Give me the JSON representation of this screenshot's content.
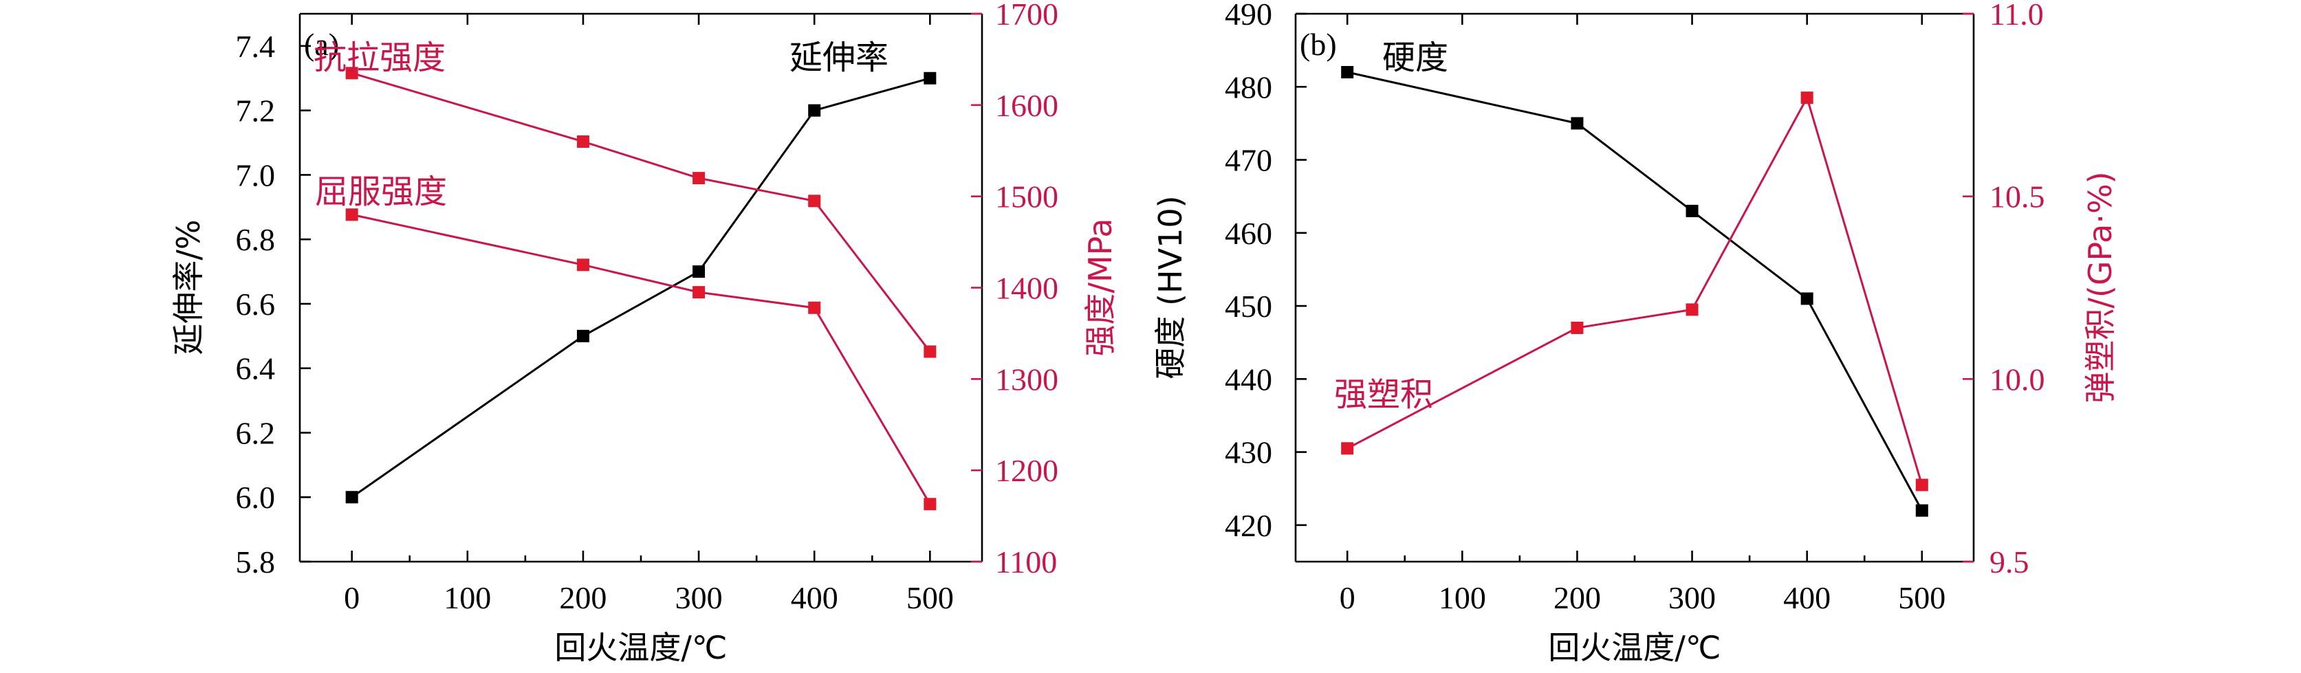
{
  "chart_data": [
    {
      "type": "line",
      "panel_label": "(a)",
      "xlabel": "回火温度/℃",
      "x_ticks": [
        0,
        100,
        200,
        300,
        400,
        500
      ],
      "xlim": [
        -45,
        545
      ],
      "y_left": {
        "label": "延伸率/%",
        "lim": [
          5.8,
          7.5
        ],
        "ticks": [
          "5.8",
          "6.0",
          "6.2",
          "6.4",
          "6.6",
          "6.8",
          "7.0",
          "7.2",
          "7.4"
        ],
        "tick_values": [
          5.8,
          6.0,
          6.2,
          6.4,
          6.6,
          6.8,
          7.0,
          7.2,
          7.4
        ]
      },
      "y_right": {
        "label": "强度/MPa",
        "lim": [
          1100,
          1700
        ],
        "ticks": [
          "1100",
          "1200",
          "1300",
          "1400",
          "1500",
          "1600",
          "1700"
        ],
        "tick_values": [
          1100,
          1200,
          1300,
          1400,
          1500,
          1600,
          1700
        ]
      },
      "series": [
        {
          "name": "延伸率",
          "axis": "left",
          "color": "#000000",
          "x": [
            0,
            200,
            300,
            400,
            500
          ],
          "values": [
            6.0,
            6.5,
            6.7,
            7.2,
            7.3
          ]
        },
        {
          "name": "抗拉强度",
          "axis": "right",
          "color": "#e0192d",
          "line_color": "#c8174a",
          "x": [
            0,
            200,
            300,
            400,
            500
          ],
          "values": [
            1635,
            1560,
            1520,
            1495,
            1330
          ]
        },
        {
          "name": "屈服强度",
          "axis": "right",
          "color": "#e0192d",
          "line_color": "#c8174a",
          "x": [
            0,
            200,
            300,
            400,
            500
          ],
          "values": [
            1480,
            1425,
            1395,
            1378,
            1163
          ]
        }
      ],
      "annotations": [
        {
          "text": "抗拉强度",
          "color": "#c8174a"
        },
        {
          "text": "屈服强度",
          "color": "#c8174a"
        },
        {
          "text": "延伸率",
          "color": "#000000"
        }
      ]
    },
    {
      "type": "line",
      "panel_label": "(b)",
      "xlabel": "回火温度/℃",
      "x_ticks": [
        0,
        100,
        200,
        300,
        400,
        500
      ],
      "xlim": [
        -45,
        545
      ],
      "y_left": {
        "label": "硬度 (HV10)",
        "lim": [
          415,
          490
        ],
        "ticks": [
          "420",
          "430",
          "440",
          "450",
          "460",
          "470",
          "480",
          "490"
        ],
        "tick_values": [
          420,
          430,
          440,
          450,
          460,
          470,
          480,
          490
        ]
      },
      "y_right": {
        "label": "弹塑积/(GPa·%)",
        "lim": [
          9.5,
          11.0
        ],
        "ticks": [
          "9.5",
          "10.0",
          "10.5",
          "11.0"
        ],
        "tick_values": [
          9.5,
          10.0,
          10.5,
          11.0
        ]
      },
      "series": [
        {
          "name": "硬度",
          "axis": "left",
          "color": "#000000",
          "x": [
            0,
            200,
            300,
            400,
            500
          ],
          "values": [
            482,
            475,
            463,
            451,
            422
          ]
        },
        {
          "name": "强塑积",
          "axis": "right",
          "color": "#e0192d",
          "line_color": "#c8174a",
          "x": [
            0,
            200,
            300,
            400,
            500
          ],
          "values": [
            9.81,
            10.14,
            10.19,
            10.77,
            9.71
          ]
        }
      ],
      "annotations": [
        {
          "text": "硬度",
          "color": "#000000"
        },
        {
          "text": "强塑积",
          "color": "#c8174a"
        }
      ]
    }
  ]
}
